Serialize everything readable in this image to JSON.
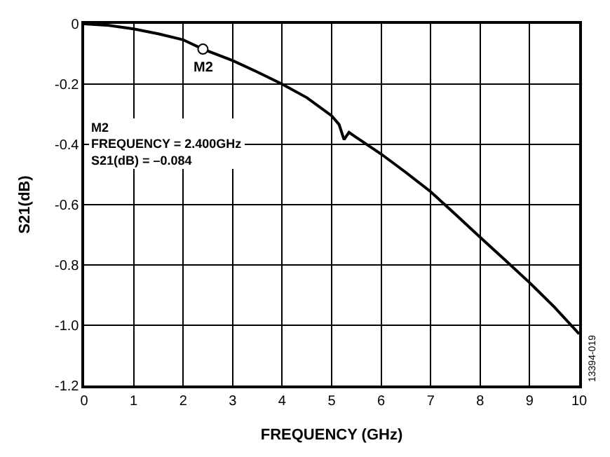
{
  "chart_data": {
    "type": "line",
    "xlabel": "FREQUENCY (GHz)",
    "ylabel": "S21(dB)",
    "x": [
      0,
      0.5,
      1,
      1.5,
      2,
      2.4,
      3,
      3.5,
      4,
      4.5,
      5,
      5.15,
      5.25,
      5.35,
      5.5,
      6,
      6.5,
      7,
      7.5,
      8,
      8.5,
      9,
      9.5,
      10
    ],
    "series": [
      {
        "color": "#000000",
        "values": [
          0,
          -0.005,
          -0.017,
          -0.033,
          -0.053,
          -0.084,
          -0.122,
          -0.16,
          -0.2,
          -0.245,
          -0.305,
          -0.334,
          -0.384,
          -0.36,
          -0.377,
          -0.432,
          -0.493,
          -0.557,
          -0.632,
          -0.708,
          -0.783,
          -0.859,
          -0.94,
          -1.029
        ]
      },
      {
        "type": "scatter",
        "marker": "circle",
        "color": "#000000",
        "x": [
          2.4
        ],
        "values": [
          -0.084
        ]
      }
    ],
    "xlim": [
      0,
      10
    ],
    "ylim": [
      -1.2,
      0
    ],
    "xticks": [
      0,
      1,
      2,
      3,
      4,
      5,
      6,
      7,
      8,
      9,
      10
    ],
    "yticks": [
      -1.2,
      {
        "value": -1,
        "label": "-1.0"
      },
      -0.8,
      -0.6,
      -0.4,
      -0.2,
      0
    ],
    "grid": true,
    "marker": "none",
    "line_style": "solid",
    "annotations": [
      {
        "text": "M2",
        "x": 2.4,
        "y": -0.084
      },
      "M2\nFREQUENCY = 2.400GHz\nS21(dB) = –0.084",
      "13394-019"
    ]
  }
}
